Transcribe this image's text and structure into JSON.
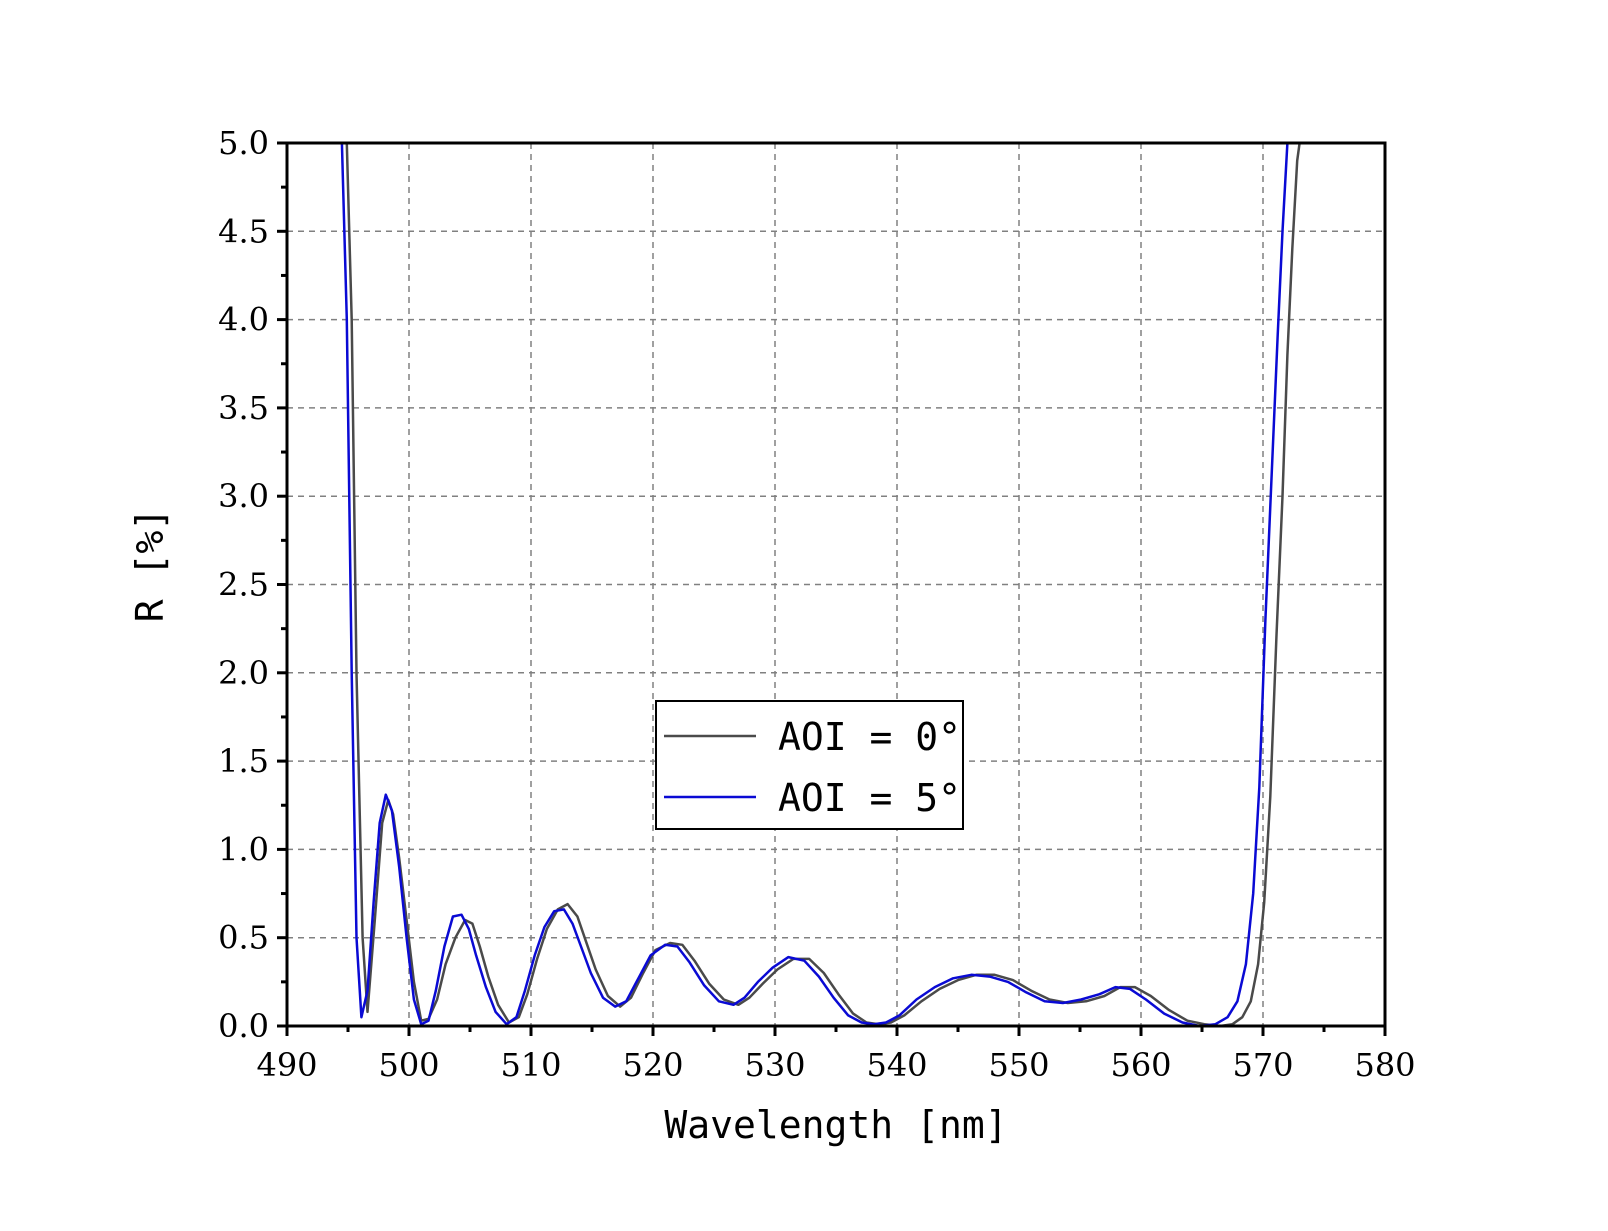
{
  "chart_data": {
    "type": "line",
    "title": "",
    "xlabel": "Wavelength [nm]",
    "ylabel": "R [%]",
    "xlim": [
      490,
      580
    ],
    "ylim": [
      0,
      5
    ],
    "x_ticks": [
      490,
      500,
      510,
      520,
      530,
      540,
      550,
      560,
      570,
      580
    ],
    "x_tick_labels": [
      "490",
      "500",
      "510",
      "520",
      "530",
      "540",
      "550",
      "560",
      "570",
      "580"
    ],
    "y_ticks": [
      0,
      0.5,
      1,
      1.5,
      2,
      2.5,
      3,
      3.5,
      4,
      4.5,
      5
    ],
    "y_tick_labels": [
      "0.0",
      "0.5",
      "1.0",
      "1.5",
      "2.0",
      "2.5",
      "3.0",
      "3.5",
      "4.0",
      "4.5",
      "5.0"
    ],
    "grid": true,
    "legend_position": "center",
    "series": [
      {
        "name": "AOI = 0°",
        "color": "#4a4a4a",
        "x": [
          494.9,
          495.3,
          495.7,
          496.2,
          496.6,
          497.2,
          497.8,
          498.3,
          498.7,
          499.2,
          499.8,
          500.4,
          501.0,
          501.6,
          502.3,
          503.0,
          503.8,
          504.6,
          505.2,
          505.8,
          506.5,
          507.3,
          508.2,
          509.0,
          509.7,
          510.5,
          511.3,
          512.2,
          513.0,
          513.8,
          514.5,
          515.3,
          516.3,
          517.3,
          518.2,
          519.2,
          520.2,
          521.4,
          522.4,
          523.4,
          524.6,
          525.8,
          527.0,
          527.9,
          529.0,
          530.2,
          531.5,
          532.8,
          534.0,
          535.2,
          536.4,
          537.5,
          538.5,
          539.5,
          540.6,
          542.0,
          543.5,
          545.0,
          546.5,
          548.0,
          549.5,
          551.0,
          552.5,
          554.0,
          555.5,
          557.0,
          558.3,
          559.5,
          560.8,
          562.3,
          563.8,
          565.2,
          566.5,
          567.5,
          568.3,
          569.0,
          569.6,
          570.1,
          570.6,
          571.1,
          571.6,
          572.0,
          572.4,
          572.8,
          573.0
        ],
        "y": [
          5.0,
          4.0,
          2.0,
          0.5,
          0.08,
          0.6,
          1.15,
          1.28,
          1.2,
          0.95,
          0.6,
          0.25,
          0.03,
          0.04,
          0.15,
          0.35,
          0.5,
          0.6,
          0.58,
          0.45,
          0.28,
          0.12,
          0.02,
          0.05,
          0.18,
          0.38,
          0.55,
          0.66,
          0.69,
          0.62,
          0.48,
          0.32,
          0.17,
          0.11,
          0.16,
          0.3,
          0.43,
          0.47,
          0.46,
          0.37,
          0.24,
          0.15,
          0.12,
          0.16,
          0.24,
          0.32,
          0.38,
          0.38,
          0.3,
          0.18,
          0.07,
          0.02,
          0.01,
          0.02,
          0.06,
          0.14,
          0.21,
          0.26,
          0.29,
          0.29,
          0.26,
          0.2,
          0.15,
          0.13,
          0.14,
          0.17,
          0.22,
          0.22,
          0.17,
          0.09,
          0.03,
          0.01,
          0.0,
          0.01,
          0.05,
          0.14,
          0.35,
          0.7,
          1.3,
          2.2,
          3.0,
          3.8,
          4.4,
          4.9,
          5.0
        ]
      },
      {
        "name": "AOI = 5°",
        "color": "#0a0ad4",
        "x": [
          494.5,
          494.9,
          495.3,
          495.7,
          496.1,
          496.6,
          497.1,
          497.6,
          498.1,
          498.6,
          499.2,
          499.8,
          500.4,
          501.0,
          501.6,
          502.2,
          502.9,
          503.6,
          504.3,
          504.9,
          505.5,
          506.3,
          507.1,
          508.0,
          508.8,
          509.5,
          510.3,
          511.1,
          511.9,
          512.7,
          513.4,
          514.1,
          514.9,
          515.9,
          516.9,
          517.8,
          518.8,
          519.8,
          521.0,
          522.0,
          523.0,
          524.2,
          525.4,
          526.6,
          527.5,
          528.6,
          529.8,
          531.1,
          532.4,
          533.6,
          534.8,
          536.0,
          537.1,
          538.1,
          539.1,
          540.2,
          541.6,
          543.1,
          544.6,
          546.1,
          547.6,
          549.1,
          550.6,
          552.1,
          553.6,
          555.1,
          556.6,
          557.9,
          559.1,
          560.4,
          561.9,
          563.4,
          564.8,
          566.1,
          567.1,
          567.9,
          568.6,
          569.2,
          569.7,
          570.2,
          570.7,
          571.2,
          571.6,
          572.0,
          572.4
        ],
        "y": [
          5.0,
          4.0,
          2.0,
          0.5,
          0.05,
          0.2,
          0.7,
          1.15,
          1.31,
          1.22,
          0.9,
          0.5,
          0.15,
          0.01,
          0.03,
          0.2,
          0.45,
          0.62,
          0.63,
          0.55,
          0.4,
          0.22,
          0.08,
          0.01,
          0.05,
          0.2,
          0.4,
          0.56,
          0.65,
          0.66,
          0.58,
          0.45,
          0.3,
          0.16,
          0.11,
          0.14,
          0.27,
          0.4,
          0.46,
          0.45,
          0.36,
          0.23,
          0.14,
          0.12,
          0.16,
          0.25,
          0.33,
          0.39,
          0.37,
          0.28,
          0.16,
          0.06,
          0.02,
          0.01,
          0.02,
          0.06,
          0.15,
          0.22,
          0.27,
          0.29,
          0.28,
          0.25,
          0.19,
          0.14,
          0.13,
          0.15,
          0.18,
          0.22,
          0.21,
          0.15,
          0.07,
          0.02,
          0.0,
          0.01,
          0.05,
          0.14,
          0.35,
          0.75,
          1.35,
          2.3,
          3.1,
          3.9,
          4.5,
          5.0,
          5.0
        ]
      }
    ]
  }
}
